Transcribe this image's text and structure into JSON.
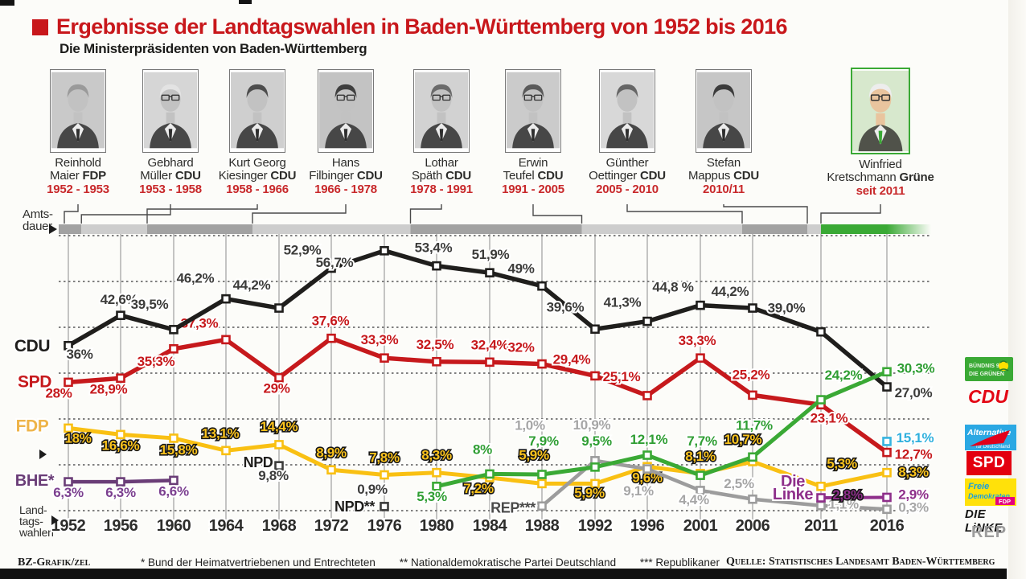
{
  "header": {
    "title": "Ergebnisse der Landtagswahlen in Baden-Württemberg von 1952 bis 2016",
    "subtitle": "Die Ministerpräsidenten von Baden-Württemberg",
    "accent_color": "#c8171b"
  },
  "labels": {
    "amts1": "Amts-",
    "amts2": "dauer",
    "ltw1": "Land-",
    "ltw2": "tags-",
    "ltw3": "wahlen"
  },
  "ministers": [
    {
      "first": "Reinhold",
      "last": "Maier",
      "party": "FDP",
      "term": "1952 - 1953",
      "start": 1952
    },
    {
      "first": "Gebhard",
      "last": "Müller",
      "party": "CDU",
      "term": "1953 - 1958",
      "start": 1953
    },
    {
      "first": "Kurt Georg",
      "last": "Kiesinger",
      "party": "CDU",
      "term": "1958 - 1966",
      "start": 1958
    },
    {
      "first": "Hans",
      "last": "Filbinger",
      "party": "CDU",
      "term": "1966 - 1978",
      "start": 1966
    },
    {
      "first": "Lothar",
      "last": "Späth",
      "party": "CDU",
      "term": "1978 - 1991",
      "start": 1978
    },
    {
      "first": "Erwin",
      "last": "Teufel",
      "party": "CDU",
      "term": "1991 - 2005",
      "start": 1991
    },
    {
      "first": "Günther",
      "last": "Oettinger",
      "party": "CDU",
      "term": "2005 - 2010",
      "start": 2005
    },
    {
      "first": "Stefan",
      "last": "Mappus",
      "party": "CDU",
      "term": "2010/11",
      "start": 2010
    },
    {
      "first": "Winfried",
      "last": "Kretschmann",
      "party": "Grüne",
      "term": "seit 2011",
      "start": 2011,
      "green": true
    }
  ],
  "chart_data": {
    "type": "line",
    "title": "Ergebnisse der Landtagswahlen in Baden-Württemberg von 1952 bis 2016",
    "x": [
      1952,
      1956,
      1960,
      1964,
      1968,
      1972,
      1976,
      1980,
      1984,
      1988,
      1992,
      1996,
      2001,
      2006,
      2011,
      2016
    ],
    "x_tick_labels": [
      "1952",
      "1956",
      "1960",
      "1964",
      "1968",
      "1972",
      "1976",
      "1980",
      "1984",
      "1988",
      "1992",
      "1996",
      "2001",
      "2006",
      "2011",
      "2016"
    ],
    "ylim": [
      0,
      60
    ],
    "gridlines_pct": [
      10,
      20,
      30,
      40,
      50,
      60
    ],
    "grid": "dotted-horizontal and solid-vertical",
    "legend_position": "right",
    "series": [
      {
        "name": "BHE",
        "color": "#6a3d77",
        "label_color": "#7b3f8f",
        "width": 4.5,
        "name_color": "#6a3d77",
        "name_size": 20,
        "name_lines": [
          {
            "t": "BHE*",
            "dx": -42,
            "dy": 0
          }
        ],
        "points": [
          [
            1952,
            6.3,
            "6,3%",
            0,
            19
          ],
          [
            1956,
            6.3,
            "6,3%",
            0,
            19
          ],
          [
            1960,
            6.6,
            "6,6%",
            0,
            19
          ]
        ]
      },
      {
        "name": "NPD 1968",
        "color": "#3c3c3b",
        "label_color": "#3c3c3b",
        "width": 4,
        "no_line": true,
        "name_color": "#1f1e1c",
        "name_size": 18,
        "name_lines": [
          {
            "t": "NPD",
            "dx": -26,
            "dy": -3
          }
        ],
        "points": [
          [
            1968,
            9.8,
            "9,8%",
            -7,
            18
          ]
        ]
      },
      {
        "name": "NPD 1976",
        "color": "#3c3c3b",
        "label_color": "#3c3c3b",
        "width": 4,
        "no_line": true,
        "name_color": "#1f1e1c",
        "name_size": 18,
        "name_lines": [
          {
            "t": "NPD**",
            "dx": -37,
            "dy": 1
          }
        ],
        "points": [
          [
            1976,
            0.9,
            "0,9%",
            -15,
            -16
          ]
        ]
      },
      {
        "name": "FDP",
        "color": "#f9c013",
        "label_color": "#fbc31c",
        "outline": true,
        "width": 5,
        "name_color": "#eeb449",
        "name_size": 21,
        "name_lines": [
          {
            "t": "FDP",
            "dx": -45,
            "dy": -1
          }
        ],
        "points": [
          [
            1952,
            18,
            "18%",
            12,
            18
          ],
          [
            1956,
            16.6,
            "16,6%",
            0,
            19
          ],
          [
            1960,
            15.8,
            "15,8%",
            6,
            20
          ],
          [
            1964,
            13.1,
            "13,1%",
            -7,
            -16
          ],
          [
            1968,
            14.4,
            "14,4%",
            0,
            -17
          ],
          [
            1972,
            8.9,
            "8,9%",
            0,
            -16
          ],
          [
            1976,
            7.8,
            "7,8%",
            0,
            -16
          ],
          [
            1980,
            8.3,
            "8,3%",
            0,
            -16
          ],
          [
            1984,
            7.2,
            "7,2%",
            -14,
            19
          ],
          [
            1988,
            5.9,
            "5,9%",
            -10,
            -30
          ],
          [
            1992,
            5.9,
            "5,9%",
            -7,
            17
          ],
          [
            1996,
            9.6,
            "9,6%",
            0,
            19
          ],
          [
            2001,
            8.1,
            "8,1%",
            0,
            -16
          ],
          [
            2006,
            10.7,
            "10,7%",
            -12,
            -22
          ],
          [
            2011,
            5.3,
            "5,3%",
            26,
            -23
          ],
          [
            2016,
            8.3,
            "8,3%",
            33,
            5
          ]
        ]
      },
      {
        "name": "REP",
        "color": "#9c9c9c",
        "label_color": "#a6a6a6",
        "width": 4.5,
        "name_color": "#4a4a4a",
        "name_size": 18,
        "name_lines": [
          {
            "t": "REP***",
            "dx": -36,
            "dy": 3
          }
        ],
        "points": [
          [
            1988,
            1,
            "1,0%",
            -15,
            -95
          ],
          [
            1992,
            10.9,
            "10,9%",
            -4,
            -39
          ],
          [
            1996,
            9.1,
            "9,1%",
            -11,
            33
          ],
          [
            2001,
            4.4,
            "4,4%",
            -8,
            17
          ],
          [
            2006,
            2.5,
            "2,5%",
            -17,
            -14
          ],
          [
            2011,
            1.1,
            "1,1%",
            28,
            4
          ],
          [
            2016,
            0.3,
            "0,3%",
            33,
            3
          ]
        ]
      },
      {
        "name": "SPD",
        "color": "#c6191c",
        "label_color": "#c6191c",
        "width": 5.5,
        "name_color": "#c6191c",
        "name_size": 21,
        "name_lines": [
          {
            "t": "SPD",
            "dx": -42,
            "dy": 1
          }
        ],
        "points": [
          [
            1952,
            28,
            "28%",
            -12,
            19
          ],
          [
            1956,
            28.9,
            "28,9%",
            -15,
            19
          ],
          [
            1960,
            35.3,
            "35,3%",
            -22,
            21
          ],
          [
            1964,
            37.3,
            "37,3%",
            -33,
            -15
          ],
          [
            1968,
            29,
            "29%",
            -3,
            19
          ],
          [
            1972,
            37.6,
            "37,6%",
            -1,
            -16
          ],
          [
            1976,
            33.3,
            "33,3%",
            -6,
            -17
          ],
          [
            1980,
            32.5,
            "32,5%",
            -2,
            -16
          ],
          [
            1984,
            32.4,
            "32,4%",
            0,
            -16
          ],
          [
            1988,
            32,
            "32%",
            -26,
            -15
          ],
          [
            1992,
            29.4,
            "29,4%",
            -29,
            -15
          ],
          [
            1996,
            25.1,
            "25,1%",
            -32,
            -18
          ],
          [
            2001,
            33.3,
            "33,3%",
            -4,
            -16
          ],
          [
            2006,
            25.2,
            "25,2%",
            -2,
            -20
          ],
          [
            2011,
            23.1,
            "23,1%",
            10,
            22
          ],
          [
            2016,
            12.7,
            "12,7%",
            33,
            8
          ]
        ]
      },
      {
        "name": "CDU",
        "color": "#1f1e1c",
        "label_color": "#3c3c3a",
        "width": 5.5,
        "name_color": "#1f1e1c",
        "name_size": 21,
        "name_lines": [
          {
            "t": "CDU",
            "dx": -45,
            "dy": 2
          }
        ],
        "points": [
          [
            1952,
            36,
            "36%",
            14,
            16
          ],
          [
            1956,
            42.6,
            "42,6%",
            -2,
            -14
          ],
          [
            1960,
            39.5,
            "39,5%",
            -30,
            -26
          ],
          [
            1964,
            46.2,
            "46,2%",
            -38,
            -20
          ],
          [
            1968,
            44.2,
            "44,2%",
            -34,
            -23
          ],
          [
            1972,
            52.9,
            "52,9%",
            -36,
            -17
          ],
          [
            1976,
            56.7,
            "56,7%",
            -62,
            20
          ],
          [
            1980,
            53.4,
            "53,4%",
            -4,
            -17
          ],
          [
            1984,
            51.9,
            "51,9%",
            1,
            -17
          ],
          [
            1988,
            49,
            "49%",
            -26,
            -16
          ],
          [
            1992,
            39.6,
            "39,6%",
            -37,
            -22
          ],
          [
            1996,
            41.3,
            "41,3%",
            -31,
            -18
          ],
          [
            2001,
            44.8,
            "44,8 %",
            -34,
            -17
          ],
          [
            2006,
            44.2,
            "44,2%",
            -28,
            -15
          ],
          [
            2011,
            39,
            "39,0%",
            -43,
            -24
          ],
          [
            2016,
            27,
            "27,0%",
            33,
            13
          ]
        ]
      },
      {
        "name": "Grüne",
        "color": "#3aa935",
        "label_color": "#2f9e33",
        "width": 5,
        "name_color": "#3aa935",
        "name_size": 20,
        "points": [
          [
            1980,
            5.3,
            "5,3%",
            -6,
            18
          ],
          [
            1984,
            8,
            "8%",
            -9,
            -25
          ],
          [
            1988,
            7.9,
            "7,9%",
            2,
            -36
          ],
          [
            1992,
            9.5,
            "9,5%",
            2,
            -27
          ],
          [
            1996,
            12.1,
            "12,1%",
            2,
            -14
          ],
          [
            2001,
            7.7,
            "7,7%",
            2,
            -37
          ],
          [
            2006,
            11.7,
            "11,7%",
            2,
            -34
          ],
          [
            2011,
            24.2,
            "24,2%",
            28,
            -25
          ],
          [
            2016,
            30.3,
            "30,3%",
            36,
            1
          ]
        ]
      },
      {
        "name": "Die Linke",
        "color": "#8e2f8a",
        "label_color": "#8e2f8a",
        "width": 4,
        "name_color": "#8e2f8a",
        "name_size": 20,
        "name_lines": [
          {
            "t": "Die",
            "dx": -35,
            "dy": -19
          },
          {
            "t": "Linke",
            "dx": -35,
            "dy": -3
          }
        ],
        "points": [
          [
            2011,
            2.8,
            "2,8%",
            33,
            2,
            1
          ],
          [
            2016,
            2.9,
            "2,9%",
            33,
            2
          ]
        ]
      },
      {
        "name": "AfD",
        "color": "#35b4e0",
        "label_color": "#2fb0dd",
        "width": 4,
        "no_line": true,
        "points": [
          [
            2016,
            15.1,
            "15,1%",
            35,
            1
          ]
        ]
      }
    ]
  },
  "legend": {
    "gruene1": "BÜNDNIS 90",
    "gruene2": "DIE GRÜNEN",
    "cdu": "CDU",
    "afd1": "Alternative",
    "afd2": "für Deutschland",
    "spd": "SPD",
    "fdp1": "Freie",
    "fdp2": "Demokraten",
    "fdp_badge": "FDP",
    "linke": "DIE LiNKE.",
    "rep": "REP"
  },
  "footer": {
    "credit": "BZ-Grafik/zel",
    "note1": "* Bund der Heimatvertriebenen und Entrechteten",
    "note2": "** Nationaldemokratische Partei Deutschland",
    "note3": "*** Republikaner",
    "source": "Quelle: Statistisches Landesamt Baden-Württemberg"
  }
}
